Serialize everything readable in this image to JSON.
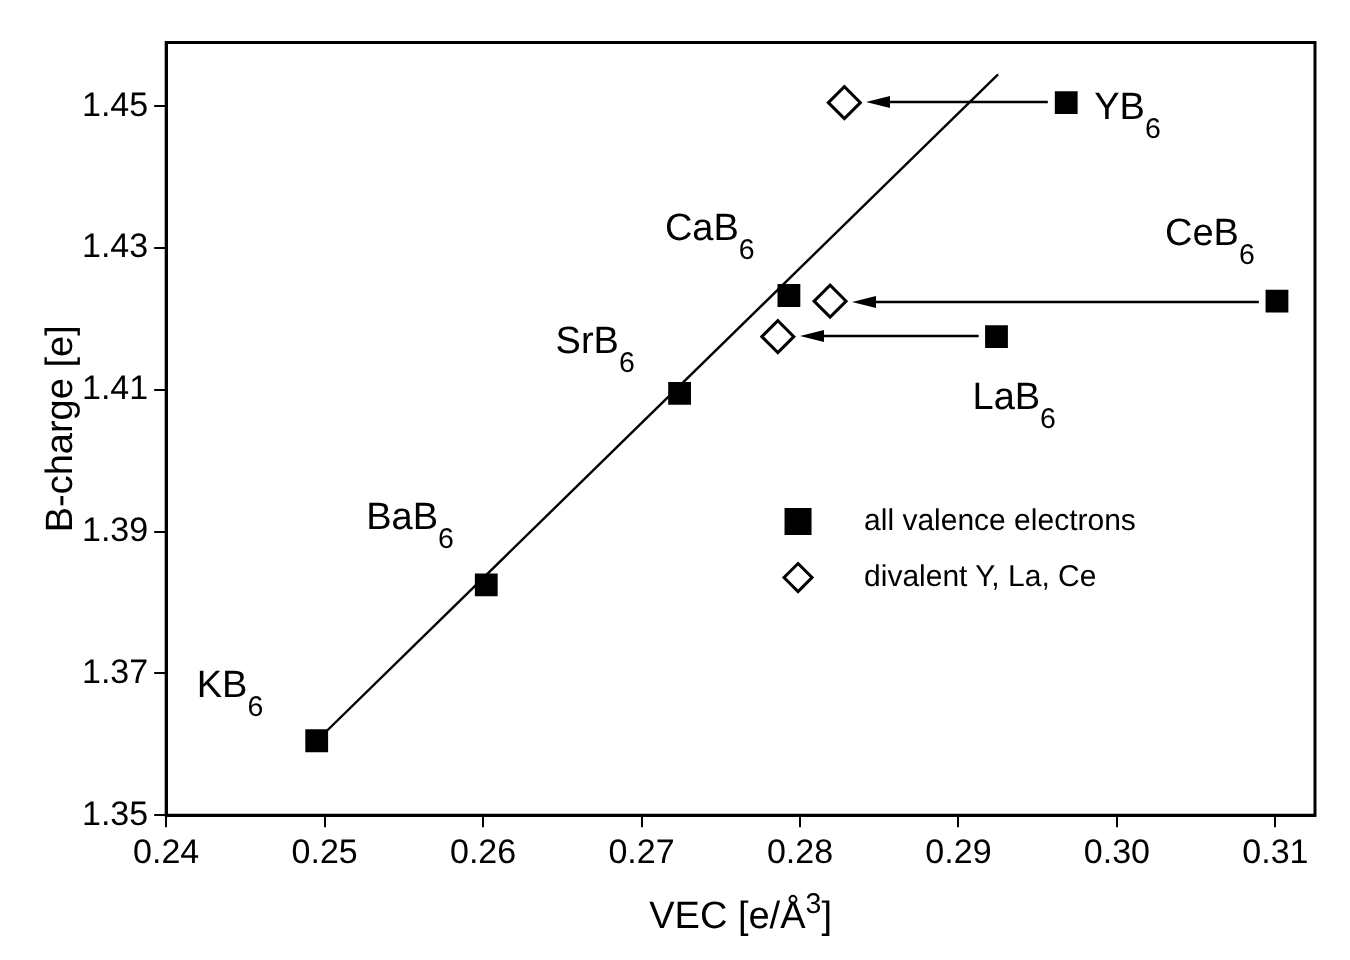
{
  "chart_data": {
    "type": "scatter",
    "xlabel": "VEC [e/Å$^{3}$]",
    "ylabel": "B-charge [e]",
    "xlim": [
      0.24,
      0.3125
    ],
    "xticks": [
      0.24,
      0.25,
      0.26,
      0.27,
      0.28,
      0.29,
      {
        "value": 0.3,
        "label": "0.30"
      },
      0.31
    ],
    "ylim": [
      1.35,
      1.459
    ],
    "yticks": [
      1.35,
      1.37,
      1.39,
      1.41,
      1.43,
      1.45
    ],
    "grid": false,
    "legend": "right",
    "series": [
      {
        "name": "all valence electrons",
        "color": "#000000",
        "marker": "square",
        "x": [
          0.2495,
          0.2602,
          0.2724,
          0.2793,
          0.2924,
          0.2968,
          0.3101
        ],
        "values": [
          1.3605,
          1.3825,
          1.4095,
          1.4233,
          1.4175,
          1.4505,
          1.4225
        ]
      },
      {
        "name": "divalent Y, La, Ce",
        "color": "#000000",
        "marker": "diamond",
        "x": [
          0.2786,
          0.2819,
          0.2828
        ],
        "values": [
          1.4175,
          1.4225,
          1.4505
        ]
      },
      {
        "type": "line",
        "color": "#000000",
        "marker": "none",
        "x": [
          0.2495,
          0.2925
        ],
        "values": [
          1.3605,
          1.4545
        ]
      }
    ],
    "annotations": [
      {
        "text": "KB$_{6}$",
        "x": 0.2495,
        "y": 1.3605
      },
      {
        "text": "BaB$_{6}$",
        "x": 0.2602,
        "y": 1.3825
      },
      {
        "text": "SrB$_{6}$",
        "x": 0.2724,
        "y": 1.4095
      },
      {
        "text": "CaB$_{6}$",
        "x": 0.2793,
        "y": 1.4233
      },
      {
        "text": "LaB$_{6}$",
        "x": 0.2924,
        "y": 1.4175
      },
      {
        "text": "YB$_{6}$",
        "x": 0.2968,
        "y": 1.4505
      },
      {
        "text": "CeB$_{6}$",
        "x": 0.3101,
        "y": 1.4225
      }
    ]
  }
}
